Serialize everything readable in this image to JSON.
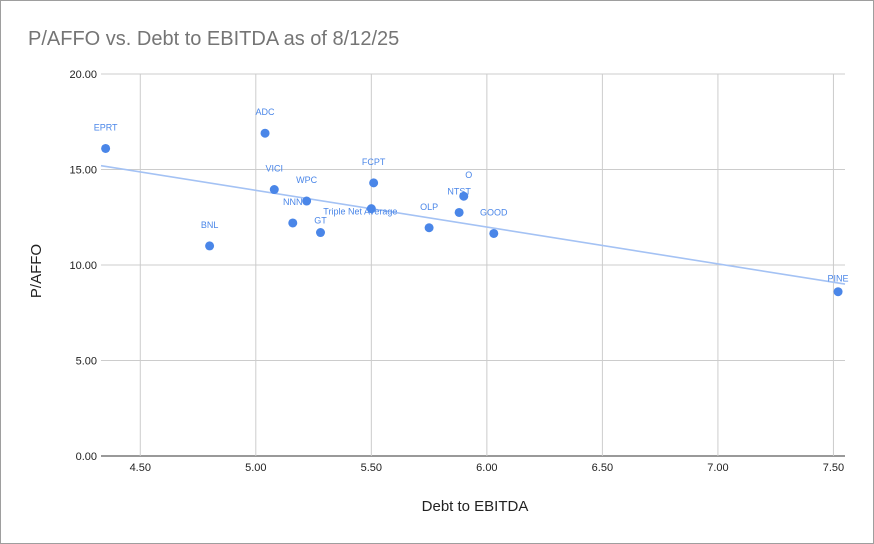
{
  "chart_data": {
    "type": "scatter",
    "title": "P/AFFO vs. Debt to EBITDA as of 8/12/25",
    "xlabel": "Debt to EBITDA",
    "ylabel": "P/AFFO",
    "xlim": [
      4.33,
      7.55
    ],
    "ylim": [
      0,
      20
    ],
    "xticks": [
      "4.50",
      "5.00",
      "5.50",
      "6.00",
      "6.50",
      "7.00",
      "7.50"
    ],
    "yticks": [
      "0.00",
      "5.00",
      "10.00",
      "15.00",
      "20.00"
    ],
    "grid": true,
    "point_color": "#4a86e8",
    "trendline_color": "#a4c2f4",
    "trendline": {
      "x": [
        4.33,
        7.55
      ],
      "y": [
        15.2,
        9.0
      ]
    },
    "points": [
      {
        "label": "EPRT",
        "x": 4.35,
        "y": 16.1
      },
      {
        "label": "BNL",
        "x": 4.8,
        "y": 11.0
      },
      {
        "label": "ADC",
        "x": 5.04,
        "y": 16.9
      },
      {
        "label": "VICI",
        "x": 5.08,
        "y": 13.95
      },
      {
        "label": "NNN",
        "x": 5.16,
        "y": 12.2
      },
      {
        "label": "WPC",
        "x": 5.22,
        "y": 13.35
      },
      {
        "label": "GT",
        "x": 5.28,
        "y": 11.7
      },
      {
        "label": "Triple Net Average",
        "x": 5.5,
        "y": 12.95
      },
      {
        "label": "FCPT",
        "x": 5.51,
        "y": 14.3
      },
      {
        "label": "OLP",
        "x": 5.75,
        "y": 11.95
      },
      {
        "label": "NTST",
        "x": 5.88,
        "y": 12.75
      },
      {
        "label": "O",
        "x": 5.9,
        "y": 13.6
      },
      {
        "label": "GOOD",
        "x": 6.03,
        "y": 11.65
      },
      {
        "label": "PINE",
        "x": 7.52,
        "y": 8.6
      }
    ]
  }
}
